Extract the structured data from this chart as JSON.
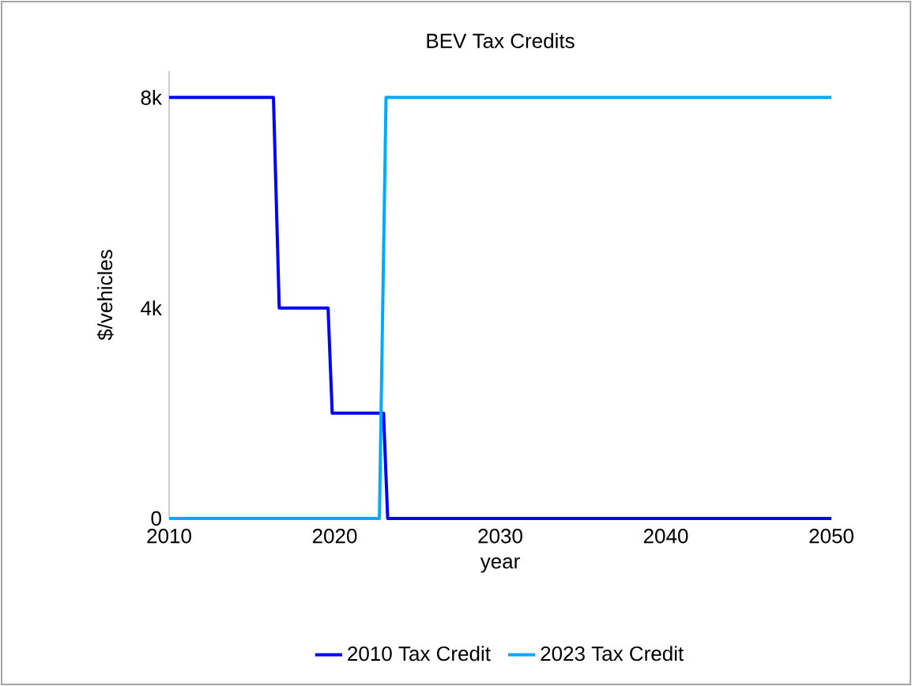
{
  "chart_data": {
    "type": "line",
    "title": "BEV Tax Credits",
    "xlabel": "year",
    "ylabel": "$/vehicles",
    "xlim": [
      2010,
      2050
    ],
    "ylim": [
      0,
      8500
    ],
    "xticks": [
      2010,
      2020,
      2030,
      2040,
      2050
    ],
    "yticks": [
      {
        "value": 0,
        "label": "0"
      },
      {
        "value": 4000,
        "label": "4k"
      },
      {
        "value": 8000,
        "label": "8k"
      }
    ],
    "grid": false,
    "legend": "bottom",
    "marker": "none",
    "line_style": "solid",
    "series": [
      {
        "name": "2010 Tax Credit",
        "color": "#0000ff",
        "x": [
          2010,
          2016.3,
          2016.65,
          2019.6,
          2019.85,
          2022.95,
          2023.2,
          2050
        ],
        "values": [
          8000,
          8000,
          4000,
          4000,
          2000,
          2000,
          0,
          0
        ]
      },
      {
        "name": "2023 Tax Credit",
        "color": "#00aaff",
        "x": [
          2010,
          2022.7,
          2023.1,
          2050
        ],
        "values": [
          0,
          0,
          8000,
          8000
        ]
      }
    ]
  }
}
